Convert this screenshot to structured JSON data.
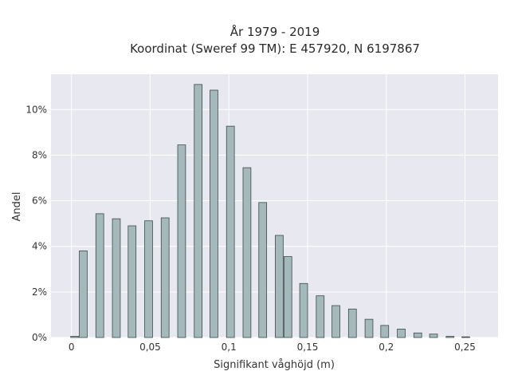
{
  "chart_data": {
    "type": "bar",
    "title": "År 1979 - 2019",
    "subtitle": "Koordinat (Sweref 99 TM): E 457920, N 6197867",
    "xlabel": "Signifikant våghöjd (m)",
    "ylabel": "Andel",
    "xlim": [
      -0.013,
      0.271
    ],
    "ylim": [
      0,
      0.1155
    ],
    "x_ticks": [
      0,
      0.05,
      0.1,
      0.15,
      0.2,
      0.25
    ],
    "x_tick_labels": [
      "0",
      "0,05",
      "0,1",
      "0,15",
      "0,2",
      "0,25"
    ],
    "y_ticks": [
      0,
      0.02,
      0.04,
      0.06,
      0.08,
      0.1
    ],
    "y_tick_labels": [
      "0%",
      "2%",
      "4%",
      "6%",
      "8%",
      "10%"
    ],
    "bar_width": 0.005,
    "x": [
      0.002,
      0.0075,
      0.018,
      0.0285,
      0.0385,
      0.049,
      0.0595,
      0.07,
      0.0805,
      0.0905,
      0.101,
      0.1115,
      0.1215,
      0.132,
      0.1375,
      0.1475,
      0.158,
      0.168,
      0.1785,
      0.189,
      0.199,
      0.2095,
      0.22,
      0.23,
      0.2405,
      0.2505
    ],
    "values": [
      0.0005,
      0.038,
      0.0543,
      0.0521,
      0.049,
      0.0512,
      0.0525,
      0.0845,
      0.111,
      0.1085,
      0.0927,
      0.0745,
      0.0592,
      0.0448,
      0.0355,
      0.0237,
      0.0183,
      0.014,
      0.0125,
      0.008,
      0.0053,
      0.0037,
      0.002,
      0.0015,
      0.0005,
      0.0003
    ],
    "grid": true,
    "bar_color": "#a4b9bb",
    "bar_edge_color": "#3d4a4a",
    "background_color": "#e8e8f0"
  }
}
